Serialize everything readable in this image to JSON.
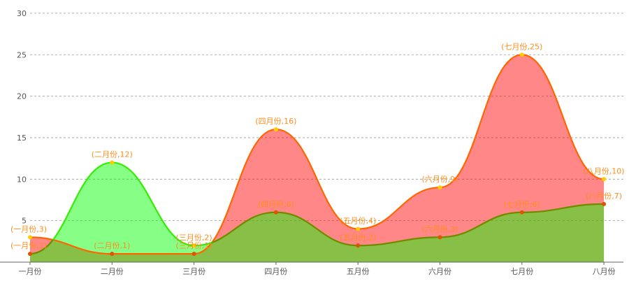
{
  "colors": {
    "series_a_fill": "#ff0000",
    "series_a_line": "#ff6600",
    "series_b_fill": "#00ff00",
    "series_b_line": "#33ee00",
    "overlap_line": "#778800",
    "point_marker": "#ffcc00",
    "label": "#ff8c1a",
    "grid": "#999999",
    "axis": "#666666"
  },
  "chart_data": {
    "type": "area",
    "smooth": true,
    "categories": [
      "一月份",
      "二月份",
      "三月份",
      "四月份",
      "五月份",
      "六月份",
      "七月份",
      "八月份"
    ],
    "series": [
      {
        "values": [
          3,
          1,
          1,
          16,
          4,
          9,
          25,
          10
        ]
      },
      {
        "values": [
          1,
          12,
          2,
          6,
          2,
          3,
          6,
          7
        ]
      }
    ],
    "point_labels": [
      [
        "(一月份,3)",
        "(二月份,1)",
        "(三月份,1)",
        "(四月份,16)",
        "(五月份,4)",
        "(六月份,9)",
        "(七月份,25)",
        "(八月份,10)"
      ],
      [
        "(一月份,1)",
        "(二月份,12)",
        "(三月份,2)",
        "(四月份,6)",
        "(五月份,2)",
        "(六月份,3)",
        "(七月份,6)",
        "(八月份,7)"
      ]
    ],
    "ylim": [
      0,
      30
    ],
    "y_ticks": [
      5,
      10,
      15,
      20,
      25,
      30
    ],
    "y_tick_labels": [
      "5",
      "10",
      "15",
      "20",
      "25",
      "30"
    ],
    "grid": true,
    "grid_style": "dashed-horizontal",
    "legend": "none",
    "title": "",
    "xlabel": "",
    "ylabel": ""
  }
}
